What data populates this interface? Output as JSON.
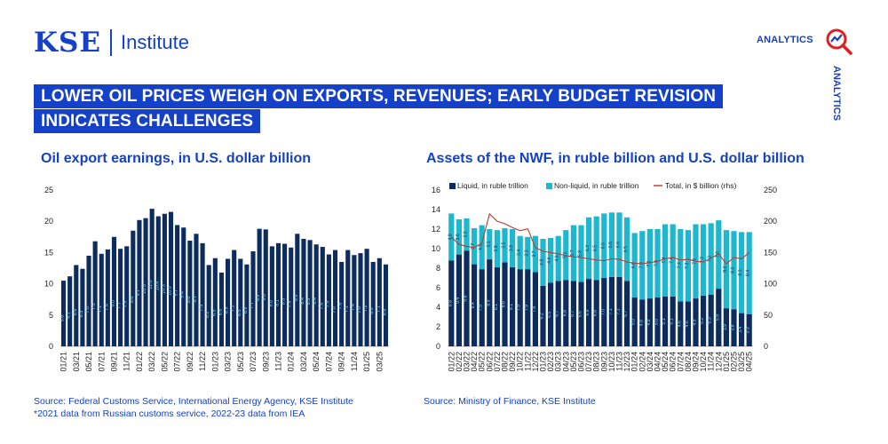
{
  "header": {
    "logo_text": "KSE",
    "logo_sub": "Institute",
    "analytics_label": "ANALYTICS",
    "analytics_vertical": "ANALYTICS",
    "title_line1": "LOWER OIL PRICES WEIGH ON EXPORTS, REVENUES; EARLY BUDGET REVISION",
    "title_line2": "INDICATES CHALLENGES"
  },
  "colors": {
    "brand": "#1540c8",
    "navy": "#0d2c5e",
    "teal": "#1db8cf",
    "red": "#c0392b",
    "light_bar_label": "#8fd3e8"
  },
  "chart_data": [
    {
      "type": "bar",
      "title": "Oil export earnings, in U.S. dollar billion",
      "ylim": [
        0,
        25
      ],
      "yticks": [
        0,
        5,
        10,
        15,
        20,
        25
      ],
      "categories": [
        "01/21",
        "02/21",
        "03/21",
        "04/21",
        "05/21",
        "06/21",
        "07/21",
        "08/21",
        "09/21",
        "10/21",
        "11/21",
        "12/21",
        "01/22",
        "02/22",
        "03/22",
        "04/22",
        "05/22",
        "06/22",
        "07/22",
        "08/22",
        "09/22",
        "10/22",
        "11/22",
        "12/22",
        "01/23",
        "02/23",
        "03/23",
        "04/23",
        "05/23",
        "06/23",
        "07/23",
        "08/23",
        "09/23",
        "10/23",
        "11/23",
        "12/23",
        "01/24",
        "02/24",
        "03/24",
        "04/24",
        "05/24",
        "06/24",
        "07/24",
        "08/24",
        "09/24",
        "10/24",
        "11/24",
        "12/24",
        "01/25",
        "02/25",
        "03/25",
        "04/25"
      ],
      "xtick_labels": [
        "01/21",
        "03/21",
        "05/21",
        "07/21",
        "09/21",
        "11/21",
        "01/22",
        "03/22",
        "05/22",
        "07/22",
        "09/22",
        "11/22",
        "01/23",
        "03/23",
        "05/23",
        "07/23",
        "09/23",
        "11/23",
        "01/24",
        "03/24",
        "05/24",
        "07/24",
        "09/24",
        "11/24",
        "01/25",
        "03/25"
      ],
      "values": [
        10.5,
        11.2,
        13.0,
        12.4,
        14.5,
        16.8,
        14.8,
        15.5,
        17.5,
        15.6,
        16.0,
        18.5,
        20.2,
        20.5,
        22.0,
        20.8,
        21.2,
        21.5,
        19.4,
        19.0,
        16.9,
        18.0,
        16.5,
        13.0,
        14.1,
        11.8,
        14.0,
        15.4,
        14.0,
        13.1,
        15.2,
        18.8,
        18.7,
        16.0,
        16.5,
        16.4,
        15.8,
        18.0,
        17.2,
        17.0,
        16.3,
        15.9,
        14.7,
        15.4,
        13.5,
        15.4,
        14.6,
        14.9,
        15.6,
        13.5,
        14.1,
        13.1
      ],
      "value_labels": [
        "5.6",
        "6.1",
        "6.6",
        "6.3",
        "7.0",
        "7.5",
        "7.1",
        "7.4",
        "8.0",
        "7.7",
        "7.9",
        "8.6",
        "9.7",
        "10.3",
        "11.0",
        "10.8",
        "10.3",
        "10.0",
        "9.7",
        "9.4",
        "8.6",
        "8.7",
        "7.3",
        "6.2",
        "6.5",
        "6.6",
        "6.9",
        "7.2",
        "6.5",
        "6.9",
        "7.7",
        "8.9",
        "9.0",
        "8.0",
        "8.1",
        "8.3",
        "7.9",
        "8.9",
        "8.4",
        "8.3",
        "8.4",
        "7.6",
        "7.9",
        "7.0",
        "7.6",
        "7.1",
        "7.4",
        "7.0",
        "7.2",
        "6.8",
        "7.1",
        "6.6"
      ]
    },
    {
      "type": "bar",
      "stacked": true,
      "title": "Assets of the NWF, in ruble billion and U.S. dollar billion",
      "ylim": [
        0,
        16
      ],
      "yticks": [
        0,
        2,
        4,
        6,
        8,
        10,
        12,
        14,
        16
      ],
      "ylim_right": [
        0,
        250
      ],
      "yticks_right": [
        0,
        50,
        100,
        150,
        200,
        250
      ],
      "legend": [
        "Liquid, in ruble trillion",
        "Non-liquid, in ruble trillion",
        "Total, in $ billion (rhs)"
      ],
      "categories": [
        "01/22",
        "02/22",
        "03/22",
        "04/22",
        "05/22",
        "06/22",
        "07/22",
        "08/22",
        "09/22",
        "10/22",
        "11/22",
        "12/22",
        "01/23",
        "02/23",
        "03/23",
        "04/23",
        "05/23",
        "06/23",
        "07/23",
        "08/23",
        "09/23",
        "10/23",
        "11/23",
        "12/23",
        "01/24",
        "02/24",
        "03/24",
        "04/24",
        "05/24",
        "06/24",
        "07/24",
        "08/24",
        "09/24",
        "10/24",
        "11/24",
        "12/24",
        "01/25",
        "02/25",
        "03/25",
        "04/25"
      ],
      "series": [
        {
          "name": "Liquid, in ruble trillion",
          "values": [
            8.8,
            9.4,
            9.8,
            8.4,
            7.9,
            8.9,
            8.1,
            8.6,
            8.1,
            7.9,
            7.9,
            7.6,
            6.2,
            6.5,
            6.7,
            6.8,
            6.7,
            6.6,
            6.9,
            6.8,
            7.0,
            7.1,
            7.1,
            6.7,
            5.0,
            4.8,
            4.9,
            5.0,
            5.1,
            5.1,
            4.6,
            4.6,
            4.9,
            5.2,
            5.3,
            5.9,
            3.9,
            3.8,
            3.4,
            3.3
          ]
        },
        {
          "name": "Non-liquid, in ruble trillion",
          "values": [
            4.8,
            3.6,
            3.3,
            3.7,
            4.5,
            3.1,
            3.8,
            3.5,
            3.9,
            3.4,
            3.3,
            3.7,
            4.8,
            4.6,
            4.6,
            5.1,
            5.7,
            5.8,
            6.3,
            6.5,
            6.6,
            6.6,
            6.6,
            6.5,
            6.6,
            7.0,
            7.1,
            7.0,
            7.4,
            7.4,
            7.4,
            7.3,
            7.6,
            7.3,
            7.3,
            7.0,
            8.0,
            8.0,
            8.3,
            8.4
          ]
        },
        {
          "name": "Total, in $ billion (rhs)",
          "values": [
            175,
            163,
            160,
            158,
            165,
            212,
            200,
            196,
            190,
            185,
            188,
            158,
            152,
            150,
            148,
            145,
            143,
            142,
            140,
            138,
            137,
            140,
            139,
            135,
            133,
            132,
            134,
            136,
            140,
            142,
            138,
            139,
            136,
            135,
            141,
            148,
            132,
            142,
            140,
            150
          ]
        }
      ],
      "liquid_labels": [
        "8.8",
        "9.4",
        "9.8",
        "8.4",
        "7.9",
        "8.9",
        "8.1",
        "8.6",
        "8.1",
        "7.9",
        "7.9",
        "7.6",
        "6.2",
        "6.5",
        "6.7",
        "6.8",
        "6.7",
        "6.6",
        "6.9",
        "6.8",
        "7.0",
        "7.1",
        "7.1",
        "6.7",
        "5.0",
        "4.8",
        "4.9",
        "5.0",
        "5.1",
        "5.1",
        "4.6",
        "4.6",
        "4.9",
        "5.2",
        "5.3",
        "5.9",
        "3.9",
        "3.8",
        "3.4",
        "3.3"
      ],
      "nonliquid_labels": [
        "4.8",
        "3.6",
        "3.3",
        "3.7",
        "4.5",
        "3.1",
        "3.8",
        "3.5",
        "3.9",
        "3.4",
        "3.3",
        "3.7",
        "4.8",
        "4.6",
        "4.6",
        "5.1",
        "5.7",
        "5.8",
        "6.3",
        "6.5",
        "6.6",
        "6.6",
        "6.6",
        "6.5",
        "6.6",
        "7.0",
        "7.1",
        "7.0",
        "7.4",
        "7.4",
        "7.4",
        "7.3",
        "7.6",
        "7.3",
        "7.3",
        "7.0",
        "8.0",
        "8.0",
        "8.3",
        "8.4"
      ]
    }
  ],
  "footnotes": {
    "left_line1": "Source: Federal Customs Service, International Energy Agency, KSE Institute",
    "left_line2": "*2021 data from Russian customs service, 2022-23 data from IEA",
    "right_line1": "Source: Ministry of Finance, KSE Institute"
  }
}
